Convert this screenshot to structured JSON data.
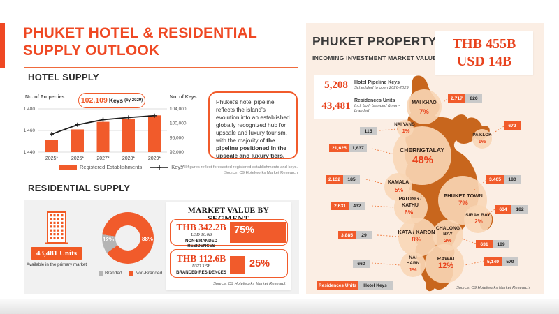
{
  "page": {
    "title_line1": "PHUKET HOTEL & RESIDENTIAL",
    "title_line2": "SUPPLY OUTLOOK"
  },
  "hotel_supply": {
    "heading": "HOTEL SUPPLY",
    "axis_left_label": "No. of Properties",
    "axis_right_label": "No. of Keys",
    "badge_value": "102,109",
    "badge_unit": "Keys",
    "badge_suffix": "(by 2029)",
    "quote_normal": "Phuket's hotel pipeline reflects the island's evolution into an established globally recognized hub for upscale and luxury tourism, with the majority of ",
    "quote_bold": "the pipeline positioned in the upscale and luxury tiers.",
    "note1": "*All figures reflect forecasted registered establishments and keys.",
    "note2": "Source: C9 Hotelworks Market Research"
  },
  "residential_supply": {
    "heading": "RESIDENTIAL SUPPLY",
    "units_value": "43,481 Units",
    "units_caption": "Available in the primary market",
    "branded_pct_label": "12%",
    "nonbranded_pct_label": "88%",
    "legend_branded": "Branded",
    "legend_nonbranded": "Non-Branded"
  },
  "market_value": {
    "title": "MARKET VALUE BY SEGMENT",
    "segments": [
      {
        "thb": "THB 342.2B",
        "usd": "USD 10.6B",
        "label": "NON-BRANDED RESIDENCES",
        "pct": "75%",
        "pct_num": 75
      },
      {
        "thb": "THB 112.6B",
        "usd": "USD 3.5B",
        "label": "BRANDED RESIDENCES",
        "pct": "25%",
        "pct_num": 25
      }
    ],
    "source": "Source: C9 Hotelworks Market Research"
  },
  "property_panel": {
    "title": "PHUKET PROPERTY",
    "subtitle": "INCOMING INVESTMENT MARKET VALUE",
    "total_thb": "THB 455B",
    "total_usd": "USD 14B",
    "stats": [
      {
        "value": "5,208",
        "label": "Hotel Pipeline Keys",
        "sub": "Scheduled to open 2026-2029"
      },
      {
        "value": "43,481",
        "label": "Residences Units",
        "sub": "Incl. both branded & non-branded"
      }
    ],
    "legend_units_label": "Residences Units",
    "legend_keys_label": "Hotel Keys",
    "source": "Source: C9 Hotelworks Market Research"
  },
  "chart_data": [
    {
      "id": "hotel-supply-combo",
      "type": "bar+line",
      "title": "HOTEL SUPPLY",
      "categories": [
        "2025*",
        "2026*",
        "2027*",
        "2028*",
        "2029*"
      ],
      "series": [
        {
          "name": "Registered Establishments",
          "type": "bar",
          "axis": "left",
          "values": [
            1451,
            1461,
            1468,
            1471,
            1474
          ]
        },
        {
          "name": "Keys",
          "type": "line",
          "axis": "right",
          "values": [
            97000,
            99600,
            101000,
            101600,
            102109
          ]
        }
      ],
      "left_axis": {
        "label": "No. of Properties",
        "ticks": [
          1480,
          1460,
          1440
        ],
        "range": [
          1440,
          1480
        ]
      },
      "right_axis": {
        "label": "No. of Keys",
        "ticks": [
          104000,
          100000,
          96000,
          92000
        ],
        "range": [
          92000,
          104000
        ]
      },
      "callout": {
        "value": "102,109",
        "unit": "Keys",
        "qualifier": "(by 2029)"
      },
      "grid": true,
      "legend_position": "bottom"
    },
    {
      "id": "residential-split-donut",
      "type": "pie",
      "labels": [
        "Branded",
        "Non-Branded"
      ],
      "values": [
        12,
        88
      ],
      "colors": [
        "#b5b5b5",
        "#f15b2b"
      ]
    },
    {
      "id": "market-value-segments",
      "type": "bar",
      "title": "MARKET VALUE BY SEGMENT",
      "categories": [
        "NON-BRANDED RESIDENCES",
        "BRANDED RESIDENCES"
      ],
      "values": [
        75,
        25
      ],
      "value_labels": [
        "THB 342.2B",
        "THB 112.6B"
      ],
      "secondary_labels": [
        "USD 10.6B",
        "USD 3.5B"
      ]
    },
    {
      "id": "phuket-map-bubbles",
      "type": "bubble-map",
      "regions": [
        {
          "id": "mai-khao",
          "name": [
            "MAI KHAO"
          ],
          "pct": "7%",
          "units": "2,717",
          "keys": "820"
        },
        {
          "id": "nai-yang",
          "name": [
            "NAI YANG"
          ],
          "pct": "1%",
          "units": null,
          "keys": "115"
        },
        {
          "id": "pa-klok",
          "name": [
            "PA KLOK"
          ],
          "pct": "1%",
          "units": "672",
          "keys": null
        },
        {
          "id": "cherngtalay",
          "name": [
            "CHERNGTALAY"
          ],
          "pct": "48%",
          "units": "21,625",
          "keys": "1,837"
        },
        {
          "id": "kamala",
          "name": [
            "KAMALA"
          ],
          "pct": "5%",
          "units": "2,132",
          "keys": "185"
        },
        {
          "id": "patong-kathu",
          "name": [
            "PATONG /",
            "KATHU"
          ],
          "pct": "6%",
          "units": "2,631",
          "keys": "432"
        },
        {
          "id": "phuket-town",
          "name": [
            "PHUKET TOWN"
          ],
          "pct": "7%",
          "units": "3,405",
          "keys": "180"
        },
        {
          "id": "siray-bay",
          "name": [
            "SIRAY BAY"
          ],
          "pct": "2%",
          "units": "634",
          "keys": "182"
        },
        {
          "id": "kata-karon",
          "name": [
            "KATA / KARON"
          ],
          "pct": "8%",
          "units": "3,885",
          "keys": "29"
        },
        {
          "id": "chalong-bay",
          "name": [
            "CHALONG",
            "BAY"
          ],
          "pct": "2%",
          "units": "631",
          "keys": "189"
        },
        {
          "id": "nai-harn",
          "name": [
            "NAI",
            "HARN"
          ],
          "pct": "1%",
          "units": null,
          "keys": "660"
        },
        {
          "id": "rawai",
          "name": [
            "RAWAI"
          ],
          "pct": "12%",
          "units": "5,149",
          "keys": "579"
        }
      ]
    }
  ]
}
